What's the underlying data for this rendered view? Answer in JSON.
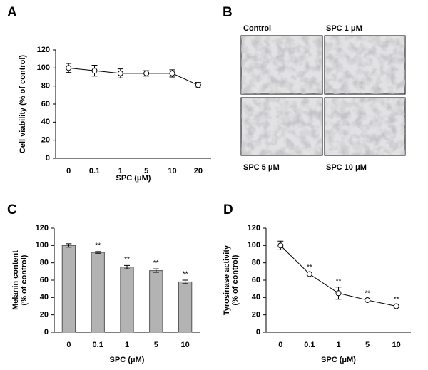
{
  "chart_data": [
    {
      "type": "line",
      "panel_label": "A",
      "categories": [
        "0",
        "0.1",
        "1",
        "5",
        "10",
        "20"
      ],
      "values": [
        100,
        97,
        94,
        94,
        94,
        81
      ],
      "errors": [
        5,
        6,
        5,
        3,
        4,
        3
      ],
      "color": "#ffffff",
      "ylim": [
        0,
        120
      ],
      "yticks": [
        0,
        20,
        40,
        60,
        80,
        100,
        120
      ],
      "xlabel": "SPC (μM)",
      "ylabel": [
        "Cell viability (% of control)"
      ]
    },
    {
      "type": "bar",
      "panel_label": "C",
      "categories": [
        "0",
        "0.1",
        "1",
        "5",
        "10"
      ],
      "values": [
        100,
        92,
        75,
        71,
        58
      ],
      "errors": [
        2,
        1,
        2,
        2,
        2
      ],
      "color": "#b3b3b3",
      "annotations": [
        null,
        "**",
        "**",
        "**",
        "**"
      ],
      "ylim": [
        0,
        120
      ],
      "yticks": [
        0,
        20,
        40,
        60,
        80,
        100,
        120
      ],
      "xlabel": "SPC (μM)",
      "ylabel": [
        "Melanin content",
        "(% of control)"
      ]
    },
    {
      "type": "line",
      "panel_label": "D",
      "categories": [
        "0",
        "0.1",
        "1",
        "5",
        "10"
      ],
      "values": [
        100,
        67,
        45,
        37,
        30
      ],
      "errors": [
        5,
        1,
        7,
        1,
        1
      ],
      "color": "#ffffff",
      "annotations": [
        null,
        "**",
        "**",
        "**",
        "**"
      ],
      "ylim": [
        0,
        120
      ],
      "yticks": [
        0,
        20,
        40,
        60,
        80,
        100,
        120
      ],
      "xlabel": "SPC (μM)",
      "ylabel": [
        "Tyrosinase activity",
        "(% of control)"
      ]
    }
  ],
  "image_panel": {
    "panel_label": "B",
    "captions": [
      "Control",
      "SPC 1 μM",
      "SPC 5 μM",
      "SPC 10 μM"
    ]
  }
}
